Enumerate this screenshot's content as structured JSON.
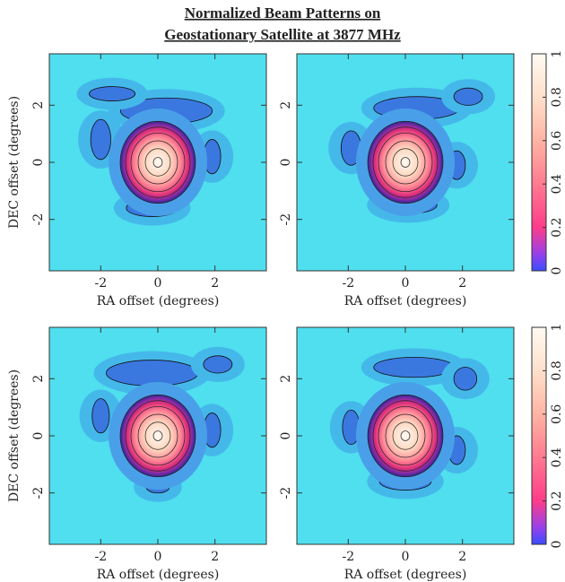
{
  "title": [
    "Normalized Beam Patterns on",
    "Geostationary Satellite at 3877 MHz"
  ],
  "chart_data": [
    {
      "type": "contour",
      "xlabel": "RA offset (degrees)",
      "ylabel": "DEC offset (degrees)",
      "xlim": [
        -3.8,
        3.8
      ],
      "ylim": [
        -3.8,
        3.8
      ],
      "xticks": [
        -2,
        0,
        2
      ],
      "yticks": [
        -2,
        0,
        2
      ]
    },
    {
      "type": "contour",
      "xlabel": "RA offset (degrees)",
      "xlim": [
        -3.8,
        3.8
      ],
      "ylim": [
        -3.8,
        3.8
      ],
      "xticks": [
        -2,
        0,
        2
      ],
      "yticks": [
        -2,
        0,
        2
      ],
      "colorbar": {
        "lim": [
          0,
          1
        ],
        "ticks": [
          0,
          0.2,
          0.4,
          0.6,
          0.8,
          1
        ]
      }
    },
    {
      "type": "contour",
      "xlabel": "RA offset (degrees)",
      "ylabel": "DEC offset (degrees)",
      "xlim": [
        -3.8,
        3.8
      ],
      "ylim": [
        -3.8,
        3.8
      ],
      "xticks": [
        -2,
        0,
        2
      ],
      "yticks": [
        -2,
        0,
        2
      ]
    },
    {
      "type": "contour",
      "xlabel": "RA offset (degrees)",
      "xlim": [
        -3.8,
        3.8
      ],
      "ylim": [
        -3.8,
        3.8
      ],
      "xticks": [
        -2,
        0,
        2
      ],
      "yticks": [
        -2,
        0,
        2
      ],
      "colorbar": {
        "lim": [
          0,
          1
        ],
        "ticks": [
          0,
          0.2,
          0.4,
          0.6,
          0.8,
          1
        ]
      }
    }
  ]
}
